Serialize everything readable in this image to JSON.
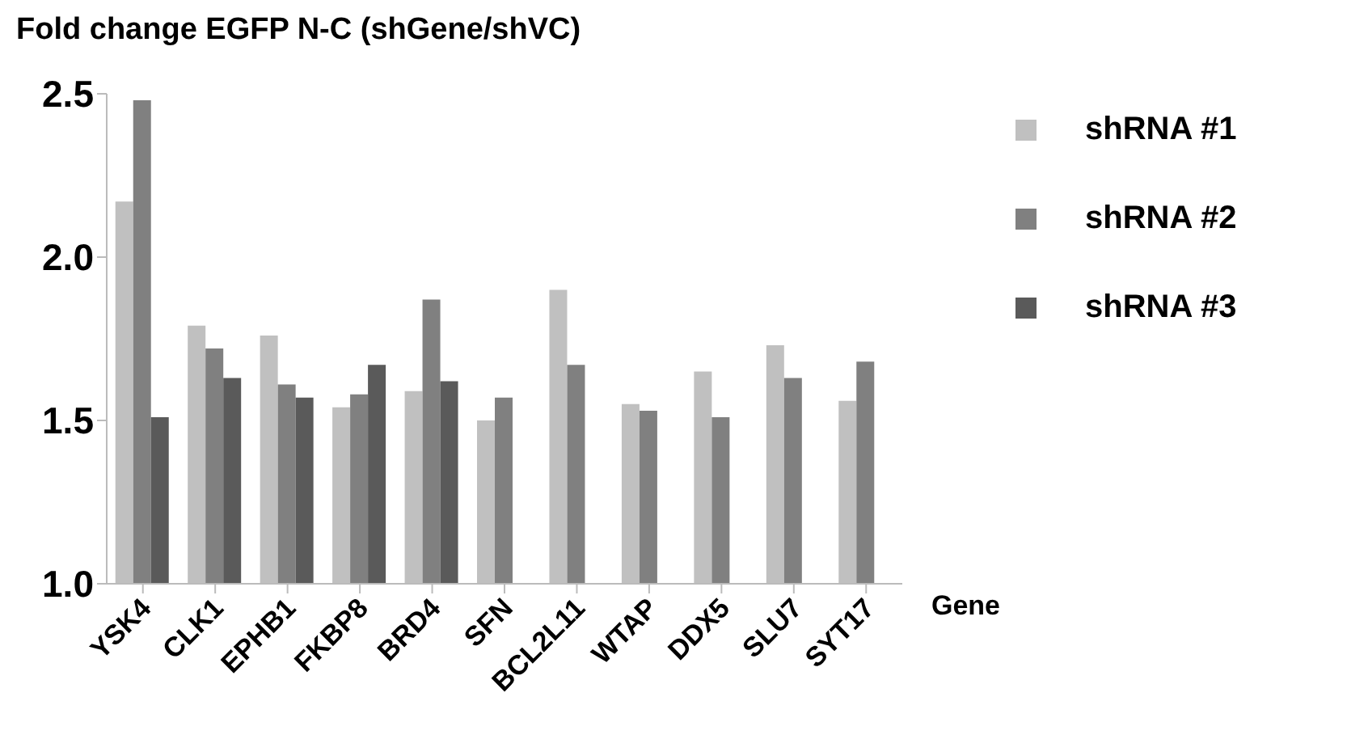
{
  "chart_data": {
    "type": "bar",
    "title": "Fold change EGFP N-C (shGene/shVC)",
    "xlabel": "Gene",
    "categories": [
      "YSK4",
      "CLK1",
      "EPHB1",
      "FKBP8",
      "BRD4",
      "SFN",
      "BCL2L11",
      "WTAP",
      "DDX5",
      "SLU7",
      "SYT17"
    ],
    "series": [
      {
        "name": "shRNA #1",
        "color": "#c0c0c0",
        "values": [
          2.17,
          1.79,
          1.76,
          1.54,
          1.59,
          1.5,
          1.9,
          1.55,
          1.65,
          1.73,
          1.56
        ]
      },
      {
        "name": "shRNA #2",
        "color": "#808080",
        "values": [
          2.48,
          1.72,
          1.61,
          1.58,
          1.87,
          1.57,
          1.67,
          1.53,
          1.51,
          1.63,
          1.68
        ]
      },
      {
        "name": "shRNA #3",
        "color": "#5a5a5a",
        "values": [
          1.51,
          1.63,
          1.57,
          1.67,
          1.62,
          null,
          null,
          null,
          null,
          null,
          null
        ]
      }
    ],
    "ylim": [
      1.0,
      2.5
    ],
    "yticks": [
      {
        "value": 1.0,
        "label": "1.0"
      },
      {
        "value": 1.5,
        "label": "1.5"
      },
      {
        "value": 2.0,
        "label": "2.0"
      },
      {
        "value": 2.5,
        "label": "2.5"
      }
    ],
    "grid": false,
    "legend": "top right"
  }
}
